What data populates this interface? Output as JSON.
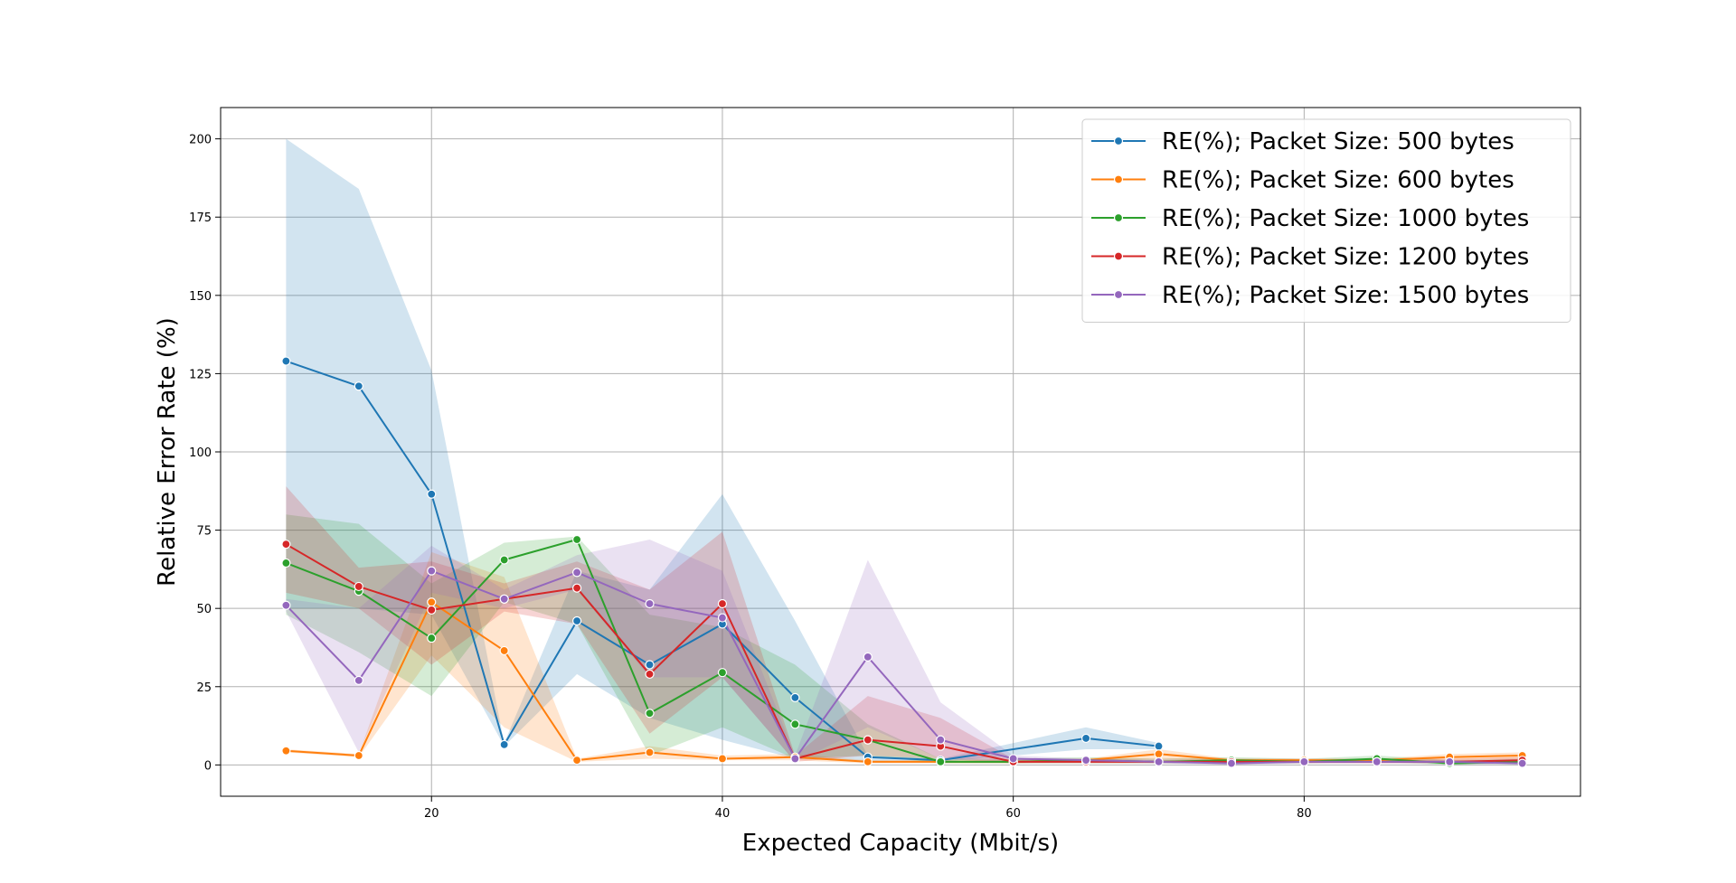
{
  "chart_data": {
    "type": "line",
    "title": "",
    "xlabel": "Expected Capacity (Mbit/s)",
    "ylabel": "Relative Error Rate (%)",
    "xlim": [
      5.5,
      99
    ],
    "ylim": [
      -10,
      210
    ],
    "xticks": [
      20,
      40,
      60,
      80
    ],
    "yticks": [
      0,
      25,
      50,
      75,
      100,
      125,
      150,
      175,
      200
    ],
    "grid": true,
    "legend_position": "top-right",
    "series": [
      {
        "name": "RE(%); Packet Size: 500 bytes",
        "color": "#1f77b4",
        "x": [
          10,
          15,
          20,
          25,
          30,
          35,
          40,
          45,
          50,
          55,
          65,
          70
        ],
        "y": [
          129,
          121,
          86.5,
          6.5,
          46,
          32,
          45,
          21.5,
          2.5,
          1.5,
          8.5,
          6
        ],
        "lower": [
          50,
          50,
          48,
          6,
          29,
          15,
          8,
          2,
          1,
          1,
          5,
          5
        ],
        "upper": [
          200,
          184,
          126,
          7,
          62,
          56,
          86.5,
          46,
          3,
          2,
          12,
          7
        ]
      },
      {
        "name": "RE(%); Packet Size: 600 bytes",
        "color": "#ff7f0e",
        "x": [
          10,
          15,
          20,
          25,
          30,
          35,
          40,
          45,
          50,
          55,
          60,
          65,
          70,
          75,
          80,
          85,
          90,
          95
        ],
        "y": [
          4.5,
          3,
          52,
          36.5,
          1.5,
          4,
          2,
          2.5,
          1,
          1,
          1,
          1.5,
          3.5,
          1.5,
          1.5,
          1.5,
          2.5,
          3
        ],
        "lower": [
          4,
          2.5,
          35,
          12,
          1,
          2,
          1.5,
          1.5,
          0.5,
          0.5,
          0.5,
          1,
          2,
          1,
          1,
          1,
          1.5,
          2
        ],
        "upper": [
          5,
          3.5,
          68,
          60,
          2,
          6,
          3,
          3.5,
          1.5,
          1.5,
          1.5,
          2,
          5,
          2,
          2,
          2,
          3.5,
          4
        ]
      },
      {
        "name": "RE(%); Packet Size: 1000 bytes",
        "color": "#2ca02c",
        "x": [
          10,
          15,
          20,
          25,
          30,
          35,
          40,
          45,
          50,
          55,
          60,
          65,
          70,
          75,
          80,
          85,
          90,
          95
        ],
        "y": [
          64.5,
          55.5,
          40.5,
          65.5,
          72,
          16.5,
          29.5,
          13,
          8,
          1,
          1,
          1.5,
          1,
          1.5,
          1,
          2,
          0.5,
          1
        ],
        "lower": [
          48,
          36,
          22,
          52,
          45,
          3,
          12,
          2,
          3,
          0.5,
          0.5,
          0.5,
          0.5,
          0.5,
          0.5,
          1,
          0,
          0.5
        ],
        "upper": [
          80,
          77,
          58,
          71,
          73,
          48,
          44,
          32,
          13,
          2,
          2,
          2.5,
          2,
          2.5,
          2,
          3,
          1.5,
          2
        ]
      },
      {
        "name": "RE(%); Packet Size: 1200 bytes",
        "color": "#d62728",
        "x": [
          10,
          15,
          20,
          25,
          30,
          35,
          40,
          45,
          50,
          55,
          60,
          65,
          70,
          75,
          80,
          85,
          90,
          95
        ],
        "y": [
          70.5,
          57,
          49.5,
          53,
          56.5,
          29,
          51.5,
          2,
          8,
          6,
          1,
          1,
          1,
          1,
          1,
          1,
          1,
          1.5
        ],
        "lower": [
          55,
          50,
          32,
          49,
          45,
          10,
          28,
          1,
          3,
          2,
          0.5,
          0.5,
          0.5,
          0.5,
          0.5,
          0.5,
          0.5,
          1
        ],
        "upper": [
          89,
          63,
          65,
          58,
          65,
          56,
          74.5,
          3,
          22,
          15,
          2,
          2,
          2,
          2,
          2,
          2,
          2,
          2.5
        ]
      },
      {
        "name": "RE(%); Packet Size: 1500 bytes",
        "color": "#9467bd",
        "x": [
          10,
          15,
          20,
          25,
          30,
          35,
          40,
          45,
          50,
          55,
          60,
          65,
          70,
          75,
          80,
          85,
          90,
          95
        ],
        "y": [
          51,
          27,
          62,
          53,
          61.5,
          51.5,
          47,
          2,
          34.5,
          8,
          2,
          1.5,
          1,
          0.5,
          1,
          1,
          1,
          0.5
        ],
        "lower": [
          49,
          4,
          55,
          50,
          56,
          28,
          28,
          1,
          12,
          2,
          1,
          1,
          0.5,
          0,
          0.5,
          0.5,
          0.5,
          0
        ],
        "upper": [
          53,
          50,
          70,
          56,
          67,
          72,
          62,
          3,
          65.5,
          20,
          3,
          2,
          1.5,
          1,
          1.5,
          1.5,
          1.5,
          1
        ]
      }
    ]
  }
}
